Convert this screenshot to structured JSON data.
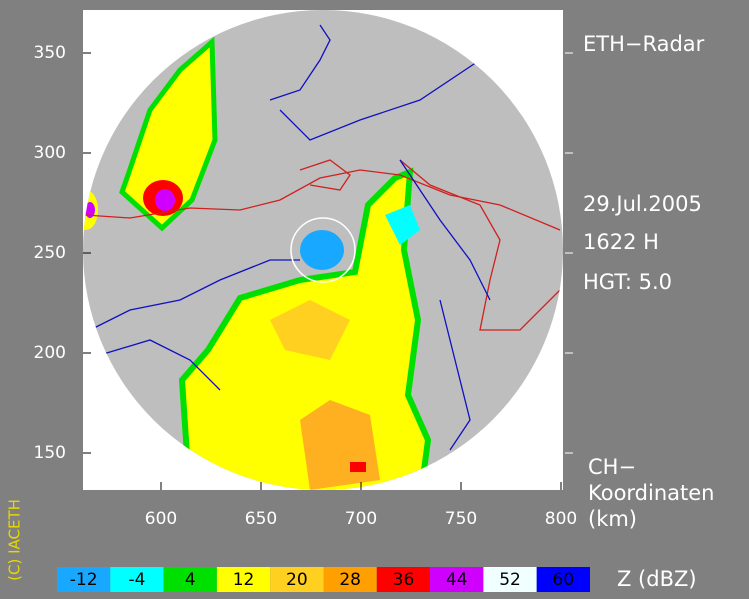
{
  "title": "ETH−Radar",
  "date": "29.Jul.2005",
  "time": "1622 H",
  "height": "HGT: 5.0",
  "coords_label": [
    "CH−",
    "Koordinaten",
    "(km)"
  ],
  "copyright": "(C) IACETH",
  "axes": {
    "xlim": [
      561,
      801
    ],
    "ylim": [
      131.5,
      371.5
    ],
    "xticks": [
      600,
      650,
      700,
      750,
      800
    ],
    "yticks": [
      150,
      200,
      250,
      300,
      350
    ]
  },
  "legend": {
    "unit": "Z  (dBZ)",
    "values": [
      -12,
      -4,
      4,
      12,
      20,
      28,
      36,
      44,
      52,
      60
    ],
    "colors": [
      "#18a8ff",
      "#00ffff",
      "#00e000",
      "#ffff00",
      "#ffd020",
      "#ffa000",
      "#ff0000",
      "#d000ff",
      "#f0ffff",
      "#0000ff"
    ]
  }
}
